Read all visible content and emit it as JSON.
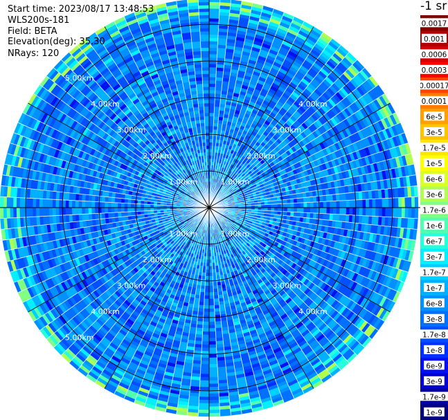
{
  "info": {
    "start_time": "Start time: 2023/08/17 13:48:53",
    "instrument": "WLS200s-181",
    "field": "Field: BETA",
    "elevation": "Elevation(deg): 35.30",
    "nrays": "NRays: 120"
  },
  "colorbar": {
    "units": "-1 sr",
    "levels": [
      {
        "label": "0.0017",
        "color": "#800000"
      },
      {
        "label": "0.001",
        "color": "#b30000"
      },
      {
        "label": "0.0006",
        "color": "#d60000"
      },
      {
        "label": "0.0003",
        "color": "#ff0000"
      },
      {
        "label": "0.00017",
        "color": "#ff4500"
      },
      {
        "label": "0.0001",
        "color": "#ff7a00"
      },
      {
        "label": "6e-5",
        "color": "#ffa000"
      },
      {
        "label": "3e-5",
        "color": "#ffc400"
      },
      {
        "label": "1.7e-5",
        "color": "#ffe600"
      },
      {
        "label": "1e-5",
        "color": "#ffff00"
      },
      {
        "label": "6e-6",
        "color": "#d9ff26"
      },
      {
        "label": "3e-6",
        "color": "#b0ff50"
      },
      {
        "label": "1.7e-6",
        "color": "#80ff80"
      },
      {
        "label": "1e-6",
        "color": "#50ffb0"
      },
      {
        "label": "6e-7",
        "color": "#26ffd9"
      },
      {
        "label": "3e-7",
        "color": "#00f0ff"
      },
      {
        "label": "1.7e-7",
        "color": "#00d0ff"
      },
      {
        "label": "1e-7",
        "color": "#00b0ff"
      },
      {
        "label": "6e-8",
        "color": "#0090ff"
      },
      {
        "label": "3e-8",
        "color": "#0070ff"
      },
      {
        "label": "1.7e-8",
        "color": "#0050ff"
      },
      {
        "label": "1e-8",
        "color": "#0030ff"
      },
      {
        "label": "6e-9",
        "color": "#0010f0"
      },
      {
        "label": "3e-9",
        "color": "#0000d0"
      },
      {
        "label": "1.7e-9",
        "color": "#0000a8"
      },
      {
        "label": "1e-9",
        "color": "#00007a"
      }
    ]
  },
  "chart_data": {
    "type": "heatmap",
    "projection": "polar (PPI)",
    "field": "BETA",
    "units": "-1 sr",
    "rays": 120,
    "scale": "log",
    "range_unit": "km",
    "range_rings": [
      1.0,
      2.0,
      3.0,
      4.0,
      5.0
    ],
    "range_ring_labels": [
      "1.00km",
      "2.00km",
      "3.00km",
      "4.00km",
      "5.00km"
    ],
    "max_range_km": 5.7,
    "spokes_deg": [
      0,
      30,
      60,
      90,
      120,
      150,
      180,
      210,
      240,
      270,
      300,
      330
    ],
    "dominant_value_range": [
      "1e-8",
      "1.7e-7"
    ],
    "outer_edge_values": [
      "1e-6",
      "3e-5"
    ],
    "grid": true
  }
}
